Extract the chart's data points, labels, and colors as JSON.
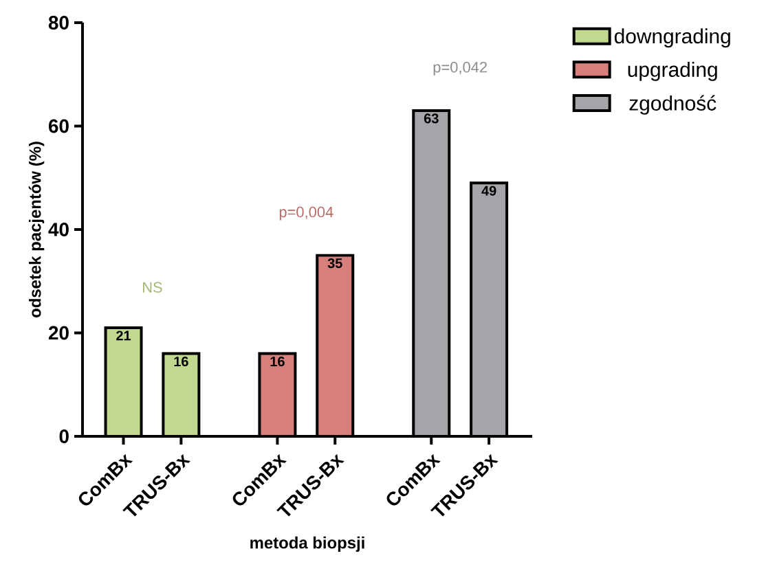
{
  "chart_data": {
    "type": "bar",
    "xlabel": "metoda biopsji",
    "ylabel": "odsetek pacjentów (%)",
    "categories": [
      "ComBx",
      "TRUS-Bx",
      "ComBx",
      "TRUS-Bx",
      "ComBx",
      "TRUS-Bx"
    ],
    "series": [
      {
        "name": "downgrading",
        "color": "#c0d98e",
        "values": [
          21,
          16,
          null,
          null,
          null,
          null
        ]
      },
      {
        "name": "upgrading",
        "color": "#d77f7a",
        "values": [
          null,
          null,
          16,
          35,
          null,
          null
        ]
      },
      {
        "name": "zgodność",
        "color": "#a5a4a9",
        "values": [
          null,
          null,
          null,
          null,
          63,
          49
        ]
      }
    ],
    "annotations": [
      "NS",
      "p=0,004",
      "p=0,042"
    ],
    "ylim": [
      0,
      80
    ],
    "yticks": [
      0,
      20,
      40,
      60,
      80
    ],
    "data_labels": true,
    "legend": "top right",
    "grid": false
  }
}
